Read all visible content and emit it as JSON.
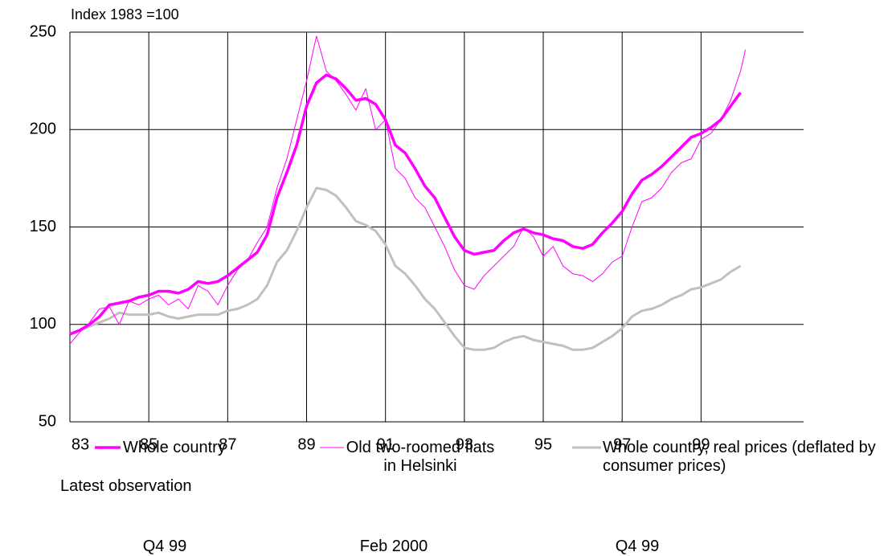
{
  "chart_data": {
    "type": "line",
    "y_label": "Index 1983 =100",
    "xlim": [
      1983,
      2001.6
    ],
    "xticks": [
      {
        "value": 1983,
        "label": "83"
      },
      {
        "value": 1985,
        "label": "85"
      },
      {
        "value": 1987,
        "label": "87"
      },
      {
        "value": 1989,
        "label": "89"
      },
      {
        "value": 1991,
        "label": "91"
      },
      {
        "value": 1993,
        "label": "93"
      },
      {
        "value": 1995,
        "label": "95"
      },
      {
        "value": 1997,
        "label": "97"
      },
      {
        "value": 1999,
        "label": "99"
      }
    ],
    "ylim": [
      50,
      250
    ],
    "yticks": [
      50,
      100,
      150,
      200,
      250
    ],
    "grid": true,
    "legend_note": "Latest observation",
    "series": [
      {
        "name": "Whole country",
        "color": "#ff00ff",
        "latest": "Q4 99",
        "x": [
          1983.0,
          1983.25,
          1983.5,
          1983.75,
          1984.0,
          1984.25,
          1984.5,
          1984.75,
          1985.0,
          1985.25,
          1985.5,
          1985.75,
          1986.0,
          1986.25,
          1986.5,
          1986.75,
          1987.0,
          1987.25,
          1987.5,
          1987.75,
          1988.0,
          1988.25,
          1988.5,
          1988.75,
          1989.0,
          1989.25,
          1989.5,
          1989.75,
          1990.0,
          1990.25,
          1990.5,
          1990.75,
          1991.0,
          1991.25,
          1991.5,
          1991.75,
          1992.0,
          1992.25,
          1992.5,
          1992.75,
          1993.0,
          1993.25,
          1993.5,
          1993.75,
          1994.0,
          1994.25,
          1994.5,
          1994.75,
          1995.0,
          1995.25,
          1995.5,
          1995.75,
          1996.0,
          1996.25,
          1996.5,
          1996.75,
          1997.0,
          1997.25,
          1997.5,
          1997.75,
          1998.0,
          1998.25,
          1998.5,
          1998.75,
          1999.0,
          1999.25,
          1999.5,
          1999.75,
          2000.0
        ],
        "values": [
          95,
          97,
          100,
          104,
          110,
          111,
          112,
          114,
          115,
          117,
          117,
          116,
          118,
          122,
          121,
          122,
          125,
          129,
          133,
          137,
          146,
          165,
          178,
          192,
          212,
          224,
          228,
          226,
          221,
          215,
          216,
          213,
          205,
          192,
          188,
          180,
          171,
          165,
          155,
          145,
          138,
          136,
          137,
          138,
          143,
          147,
          149,
          147,
          146,
          144,
          143,
          140,
          139,
          141,
          147,
          152,
          158,
          167,
          174,
          177,
          181,
          186,
          191,
          196,
          198,
          201,
          205,
          212,
          219
        ]
      },
      {
        "name": "Old two-roomed flats in Helsinki",
        "color": "#ff00ff",
        "latest": "Feb 2000",
        "x": [
          1983.0,
          1983.25,
          1983.5,
          1983.75,
          1984.0,
          1984.25,
          1984.5,
          1984.75,
          1985.0,
          1985.25,
          1985.5,
          1985.75,
          1986.0,
          1986.25,
          1986.5,
          1986.75,
          1987.0,
          1987.25,
          1987.5,
          1987.75,
          1988.0,
          1988.25,
          1988.5,
          1988.75,
          1989.0,
          1989.25,
          1989.5,
          1989.75,
          1990.0,
          1990.25,
          1990.5,
          1990.75,
          1991.0,
          1991.25,
          1991.5,
          1991.75,
          1992.0,
          1992.25,
          1992.5,
          1992.75,
          1993.0,
          1993.25,
          1993.5,
          1993.75,
          1994.0,
          1994.25,
          1994.5,
          1994.75,
          1995.0,
          1995.25,
          1995.5,
          1995.75,
          1996.0,
          1996.25,
          1996.5,
          1996.75,
          1997.0,
          1997.25,
          1997.5,
          1997.75,
          1998.0,
          1998.25,
          1998.5,
          1998.75,
          1999.0,
          1999.25,
          1999.5,
          1999.75,
          2000.0,
          2000.125
        ],
        "values": [
          90,
          96,
          101,
          108,
          109,
          100,
          112,
          110,
          113,
          115,
          110,
          113,
          108,
          120,
          117,
          110,
          120,
          128,
          133,
          142,
          150,
          170,
          185,
          205,
          225,
          248,
          230,
          225,
          218,
          210,
          221,
          200,
          205,
          180,
          175,
          165,
          160,
          150,
          140,
          128,
          120,
          118,
          125,
          130,
          135,
          140,
          150,
          145,
          135,
          140,
          130,
          126,
          125,
          122,
          126,
          132,
          135,
          150,
          163,
          165,
          170,
          178,
          183,
          185,
          195,
          198,
          205,
          215,
          230,
          241
        ]
      },
      {
        "name": "Whole country, real prices (deflated by consumer prices)",
        "color": "#c0c0c0",
        "latest": "Q4 99",
        "x": [
          1983.0,
          1983.25,
          1983.5,
          1983.75,
          1984.0,
          1984.25,
          1984.5,
          1984.75,
          1985.0,
          1985.25,
          1985.5,
          1985.75,
          1986.0,
          1986.25,
          1986.5,
          1986.75,
          1987.0,
          1987.25,
          1987.5,
          1987.75,
          1988.0,
          1988.25,
          1988.5,
          1988.75,
          1989.0,
          1989.25,
          1989.5,
          1989.75,
          1990.0,
          1990.25,
          1990.5,
          1990.75,
          1991.0,
          1991.25,
          1991.5,
          1991.75,
          1992.0,
          1992.25,
          1992.5,
          1992.75,
          1993.0,
          1993.25,
          1993.5,
          1993.75,
          1994.0,
          1994.25,
          1994.5,
          1994.75,
          1995.0,
          1995.25,
          1995.5,
          1995.75,
          1996.0,
          1996.25,
          1996.5,
          1996.75,
          1997.0,
          1997.25,
          1997.5,
          1997.75,
          1998.0,
          1998.25,
          1998.5,
          1998.75,
          1999.0,
          1999.25,
          1999.5,
          1999.75,
          2000.0
        ],
        "values": [
          95,
          97,
          99,
          101,
          103,
          106,
          105,
          105,
          105,
          106,
          104,
          103,
          104,
          105,
          105,
          105,
          107,
          108,
          110,
          113,
          120,
          132,
          138,
          148,
          160,
          170,
          169,
          166,
          160,
          153,
          151,
          148,
          141,
          130,
          126,
          120,
          113,
          108,
          101,
          94,
          88,
          87,
          87,
          88,
          91,
          93,
          94,
          92,
          91,
          90,
          89,
          87,
          87,
          88,
          91,
          94,
          98,
          104,
          107,
          108,
          110,
          113,
          115,
          118,
          119,
          121,
          123,
          127,
          130
        ]
      }
    ]
  }
}
